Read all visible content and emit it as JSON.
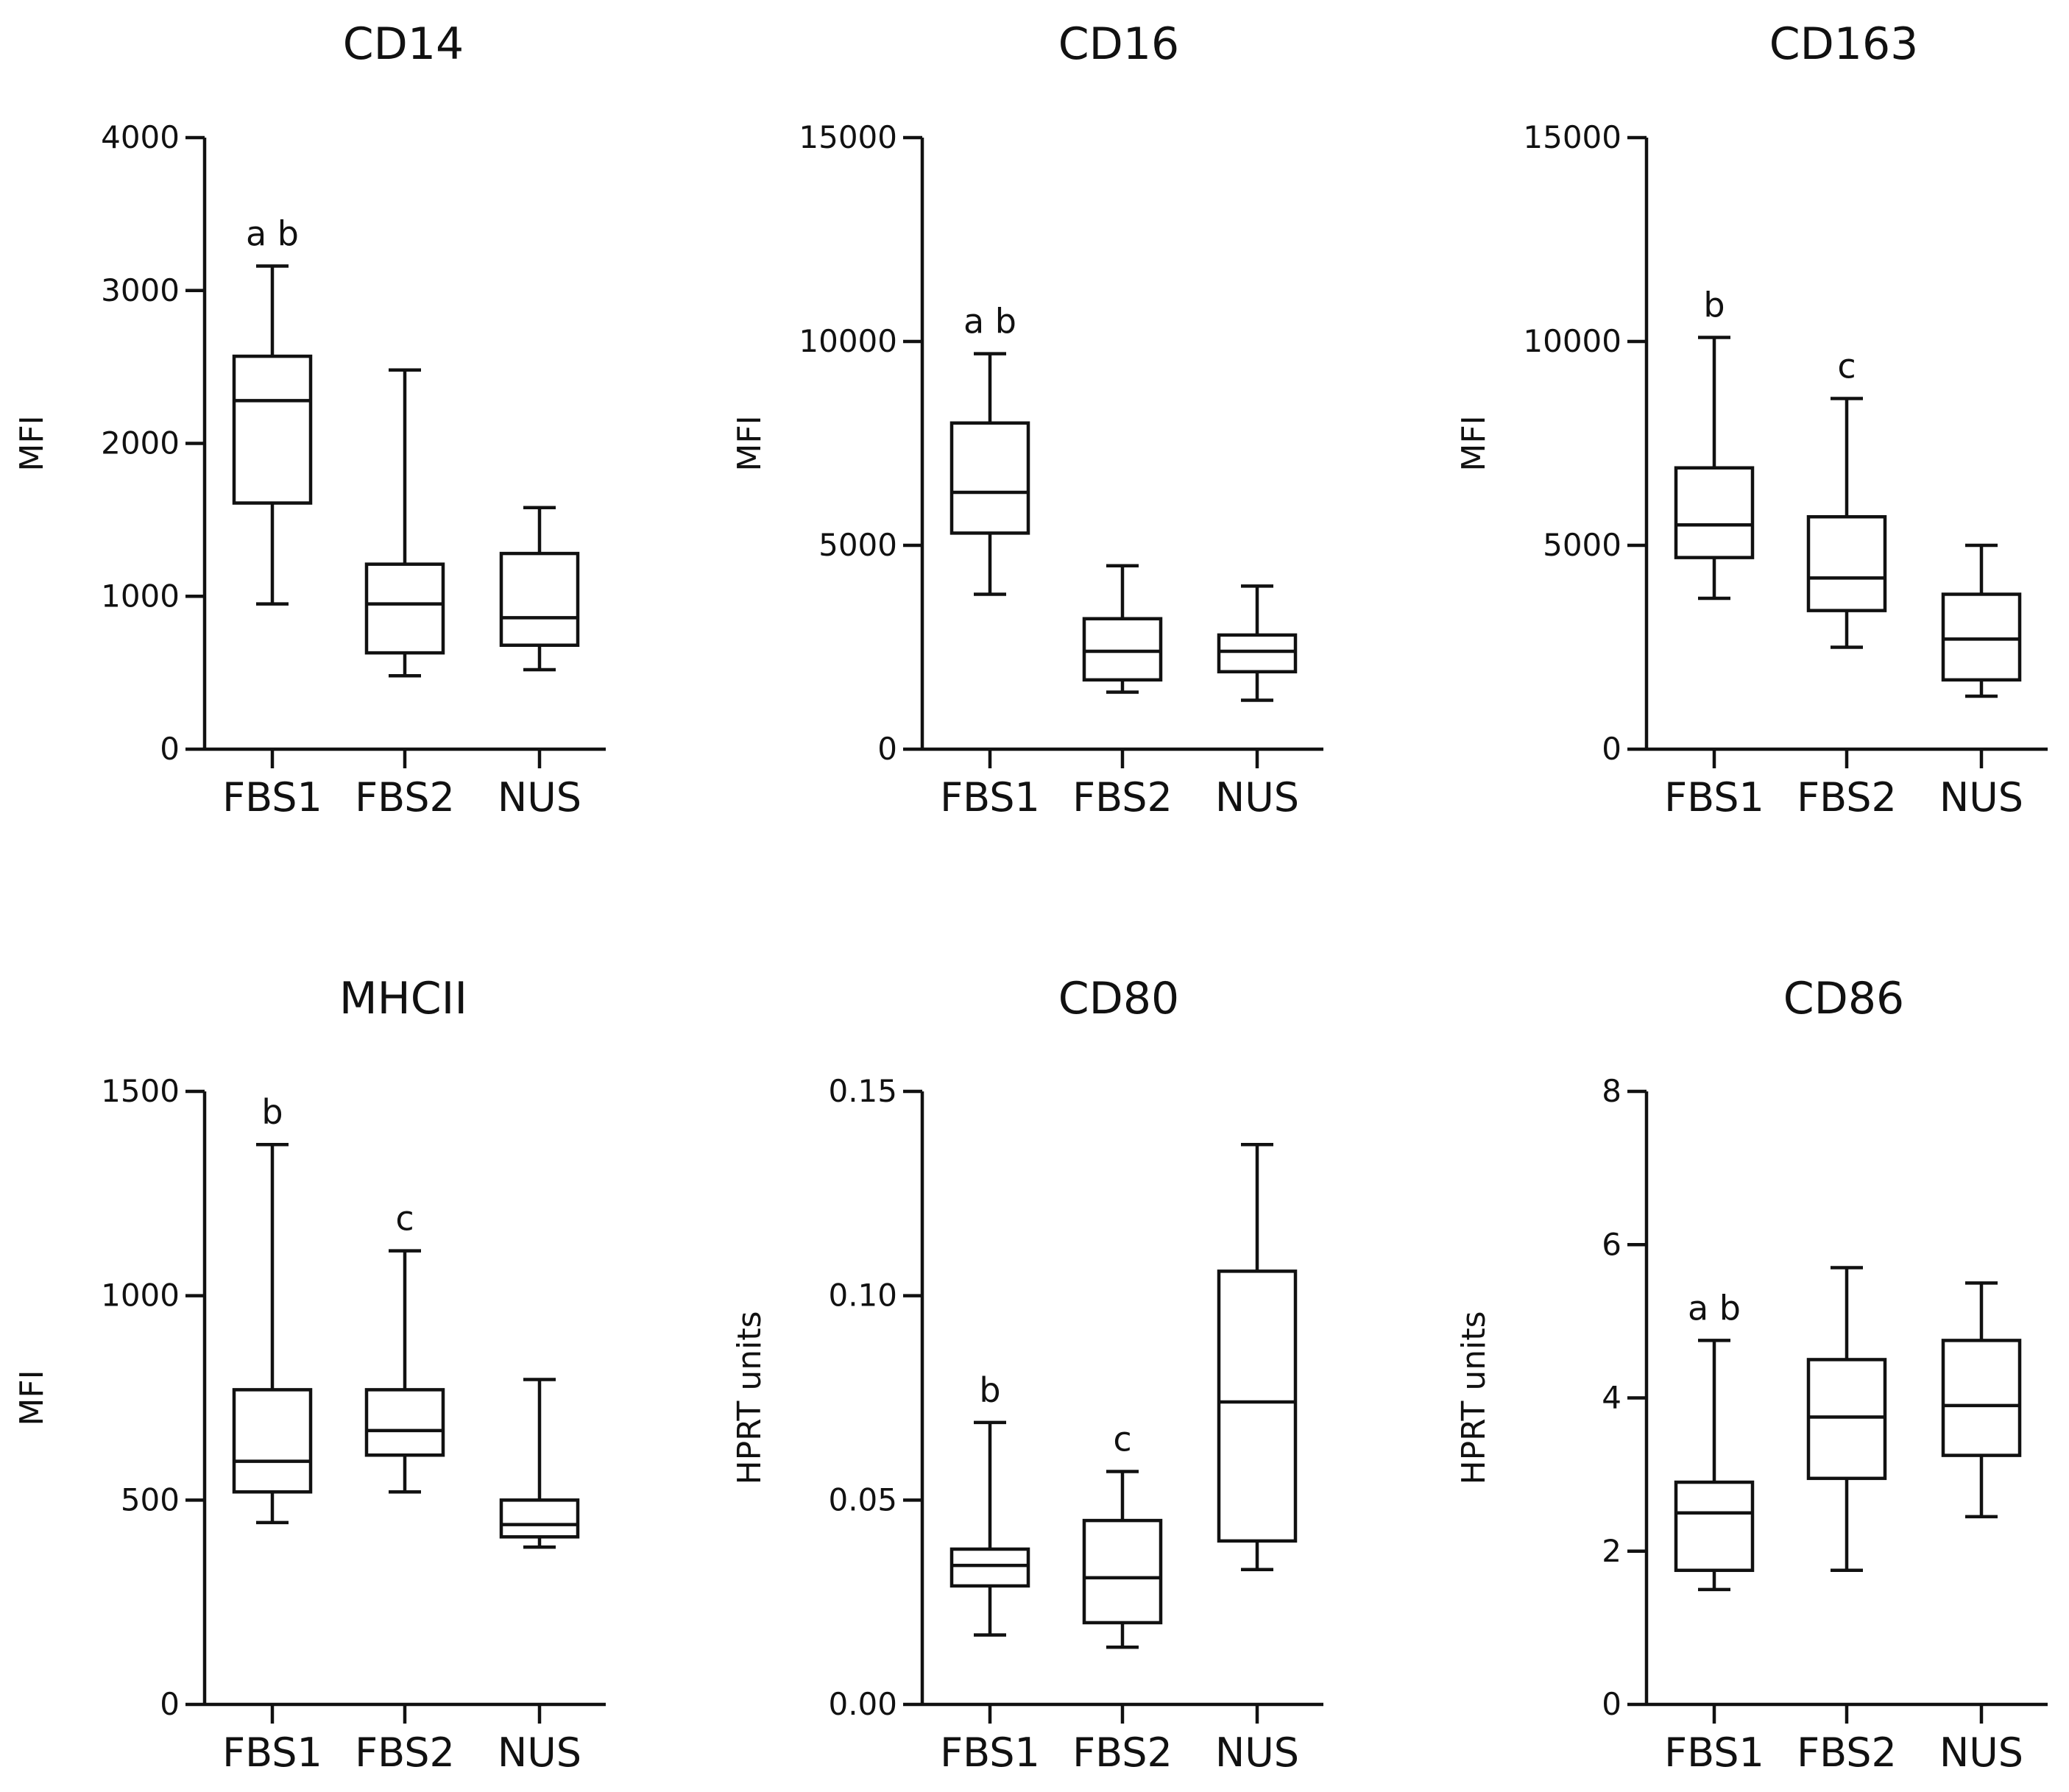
{
  "chart_data": [
    {
      "type": "boxplot",
      "title": "CD14",
      "ylabel": "MFI",
      "ylim": [
        0,
        4000
      ],
      "yticks": [
        0,
        1000,
        2000,
        3000,
        4000
      ],
      "ytick_labels": [
        "0",
        "1000",
        "2000",
        "3000",
        "4000"
      ],
      "categories": [
        "FBS1",
        "FBS2",
        "NUS"
      ],
      "boxes": [
        {
          "min": 950,
          "q1": 1610,
          "median": 2280,
          "q3": 2570,
          "max": 3160,
          "annotation": "a b"
        },
        {
          "min": 480,
          "q1": 630,
          "median": 950,
          "q3": 1210,
          "max": 2480,
          "annotation": ""
        },
        {
          "min": 520,
          "q1": 680,
          "median": 860,
          "q3": 1280,
          "max": 1580,
          "annotation": ""
        }
      ]
    },
    {
      "type": "boxplot",
      "title": "CD16",
      "ylabel": "MFI",
      "ylim": [
        0,
        15000
      ],
      "yticks": [
        0,
        5000,
        10000,
        15000
      ],
      "ytick_labels": [
        "0",
        "5000",
        "10000",
        "15000"
      ],
      "categories": [
        "FBS1",
        "FBS2",
        "NUS"
      ],
      "boxes": [
        {
          "min": 3800,
          "q1": 5300,
          "median": 6300,
          "q3": 8000,
          "max": 9700,
          "annotation": "a b"
        },
        {
          "min": 1400,
          "q1": 1700,
          "median": 2400,
          "q3": 3200,
          "max": 4500,
          "annotation": ""
        },
        {
          "min": 1200,
          "q1": 1900,
          "median": 2400,
          "q3": 2800,
          "max": 4000,
          "annotation": ""
        }
      ]
    },
    {
      "type": "boxplot",
      "title": "CD163",
      "ylabel": "MFI",
      "ylim": [
        0,
        15000
      ],
      "yticks": [
        0,
        5000,
        10000,
        15000
      ],
      "ytick_labels": [
        "0",
        "5000",
        "10000",
        "15000"
      ],
      "categories": [
        "FBS1",
        "FBS2",
        "NUS"
      ],
      "boxes": [
        {
          "min": 3700,
          "q1": 4700,
          "median": 5500,
          "q3": 6900,
          "max": 10100,
          "annotation": "b"
        },
        {
          "min": 2500,
          "q1": 3400,
          "median": 4200,
          "q3": 5700,
          "max": 8600,
          "annotation": "c"
        },
        {
          "min": 1300,
          "q1": 1700,
          "median": 2700,
          "q3": 3800,
          "max": 5000,
          "annotation": ""
        }
      ]
    },
    {
      "type": "boxplot",
      "title": "MHCII",
      "ylabel": "MFI",
      "ylim": [
        0,
        1500
      ],
      "yticks": [
        0,
        500,
        1000,
        1500
      ],
      "ytick_labels": [
        "0",
        "500",
        "1000",
        "1500"
      ],
      "categories": [
        "FBS1",
        "FBS2",
        "NUS"
      ],
      "boxes": [
        {
          "min": 445,
          "q1": 520,
          "median": 595,
          "q3": 770,
          "max": 1370,
          "annotation": "b"
        },
        {
          "min": 520,
          "q1": 610,
          "median": 670,
          "q3": 770,
          "max": 1110,
          "annotation": "c"
        },
        {
          "min": 385,
          "q1": 410,
          "median": 440,
          "q3": 500,
          "max": 795,
          "annotation": ""
        }
      ]
    },
    {
      "type": "boxplot",
      "title": "CD80",
      "ylabel": "HPRT units",
      "ylim": [
        0,
        0.15
      ],
      "yticks": [
        0,
        0.05,
        0.1,
        0.15
      ],
      "ytick_labels": [
        "0.00",
        "0.05",
        "0.10",
        "0.15"
      ],
      "categories": [
        "FBS1",
        "FBS2",
        "NUS"
      ],
      "boxes": [
        {
          "min": 0.017,
          "q1": 0.029,
          "median": 0.034,
          "q3": 0.038,
          "max": 0.069,
          "annotation": "b"
        },
        {
          "min": 0.014,
          "q1": 0.02,
          "median": 0.031,
          "q3": 0.045,
          "max": 0.057,
          "annotation": "c"
        },
        {
          "min": 0.033,
          "q1": 0.04,
          "median": 0.074,
          "q3": 0.106,
          "max": 0.137,
          "annotation": ""
        }
      ]
    },
    {
      "type": "boxplot",
      "title": "CD86",
      "ylabel": "HPRT units",
      "ylim": [
        0,
        8
      ],
      "yticks": [
        0,
        2,
        4,
        6,
        8
      ],
      "ytick_labels": [
        "0",
        "2",
        "4",
        "6",
        "8"
      ],
      "categories": [
        "FBS1",
        "FBS2",
        "NUS"
      ],
      "boxes": [
        {
          "min": 1.5,
          "q1": 1.75,
          "median": 2.5,
          "q3": 2.9,
          "max": 4.75,
          "annotation": "a b"
        },
        {
          "min": 1.75,
          "q1": 2.95,
          "median": 3.75,
          "q3": 4.5,
          "max": 5.7,
          "annotation": ""
        },
        {
          "min": 2.45,
          "q1": 3.25,
          "median": 3.9,
          "q3": 4.75,
          "max": 5.5,
          "annotation": ""
        }
      ]
    }
  ]
}
